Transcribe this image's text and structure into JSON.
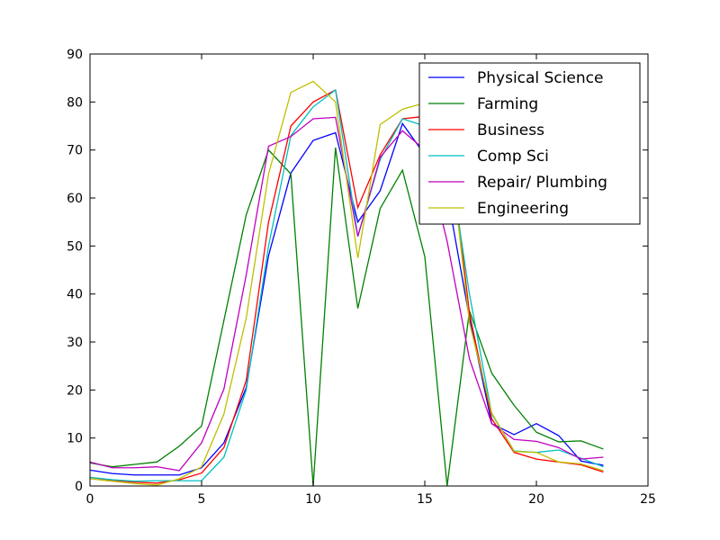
{
  "chart_data": {
    "type": "line",
    "title": "",
    "xlabel": "",
    "ylabel": "",
    "xlim": [
      0,
      25
    ],
    "ylim": [
      0,
      90
    ],
    "xticks": [
      0,
      5,
      10,
      15,
      20,
      25
    ],
    "yticks": [
      0,
      10,
      20,
      30,
      40,
      50,
      60,
      70,
      80,
      90
    ],
    "grid": false,
    "legend_position": "top-right",
    "x": [
      0,
      1,
      2,
      3,
      4,
      5,
      6,
      7,
      8,
      9,
      10,
      11,
      12,
      13,
      14,
      15,
      16,
      17,
      18,
      19,
      20,
      21,
      22,
      23
    ],
    "series": [
      {
        "name": "Physical Science",
        "color": "#0000ff",
        "values": [
          3.3,
          2.6,
          2.3,
          2.3,
          2.3,
          3.8,
          9.0,
          20.5,
          48.0,
          65.2,
          72.0,
          73.6,
          55.0,
          61.5,
          75.5,
          69.0,
          61.0,
          35.0,
          13.0,
          10.7,
          13.0,
          10.5,
          5.2,
          4.3
        ]
      },
      {
        "name": "Farming",
        "color": "#008000",
        "values": [
          4.8,
          4.0,
          4.5,
          5.0,
          8.3,
          12.5,
          34.5,
          56.5,
          70.0,
          65.0,
          0.0,
          70.5,
          37.0,
          57.8,
          65.8,
          47.8,
          0.0,
          36.5,
          23.5,
          16.8,
          11.2,
          9.2,
          9.4,
          7.7
        ]
      },
      {
        "name": "Business",
        "color": "#ff0000",
        "values": [
          1.8,
          1.2,
          0.8,
          0.6,
          1.3,
          2.7,
          8.0,
          22.0,
          55.0,
          75.0,
          80.0,
          82.5,
          58.0,
          69.0,
          76.5,
          77.0,
          76.0,
          36.0,
          14.0,
          7.0,
          5.6,
          5.0,
          4.4,
          2.9
        ]
      },
      {
        "name": "Comp Sci",
        "color": "#00bfbf",
        "values": [
          1.8,
          1.3,
          1.0,
          1.1,
          1.1,
          1.1,
          6.0,
          20.0,
          50.0,
          73.0,
          79.0,
          82.5,
          52.0,
          68.0,
          76.5,
          75.0,
          71.0,
          40.0,
          15.0,
          7.3,
          7.0,
          7.5,
          5.8,
          4.0
        ]
      },
      {
        "name": "Repair/ Plumbing",
        "color": "#bf00bf",
        "values": [
          5.0,
          3.8,
          3.8,
          4.0,
          3.2,
          9.0,
          20.2,
          44.0,
          70.8,
          72.8,
          76.5,
          76.8,
          52.0,
          68.5,
          74.0,
          70.0,
          51.0,
          26.5,
          13.0,
          9.7,
          9.3,
          8.0,
          5.6,
          6.0
        ]
      },
      {
        "name": "Engineering",
        "color": "#bfbf00",
        "values": [
          1.5,
          1.0,
          0.5,
          0.2,
          1.5,
          4.0,
          15.0,
          35.0,
          65.0,
          82.0,
          84.3,
          80.0,
          47.5,
          75.3,
          78.5,
          79.8,
          75.0,
          34.0,
          15.2,
          7.2,
          7.0,
          5.0,
          4.6,
          3.2
        ]
      }
    ]
  }
}
